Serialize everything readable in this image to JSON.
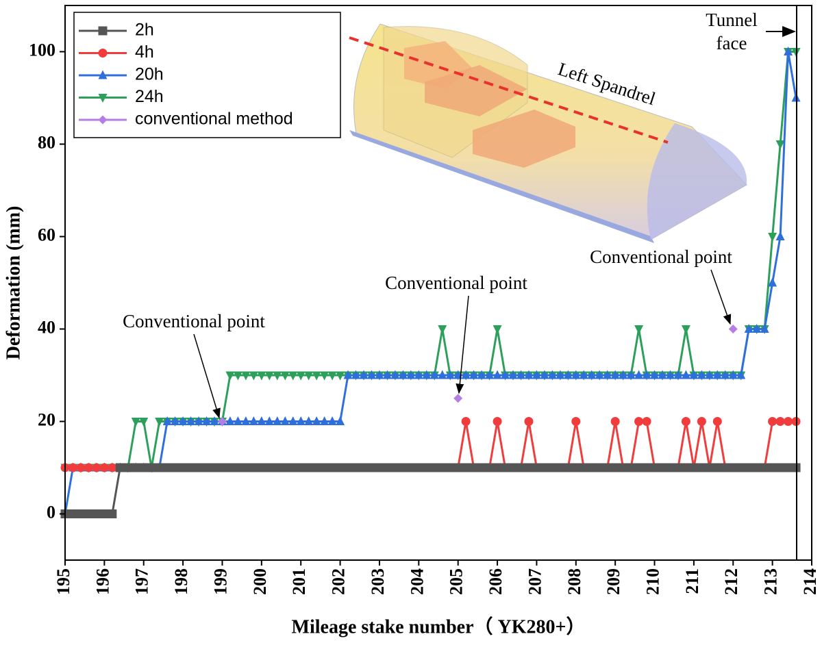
{
  "chart_data": {
    "type": "line",
    "xlabel": "Mileage stake number（ YK280+）",
    "ylabel": "Deformation (mm)",
    "x": [
      195,
      195.2,
      195.4,
      195.6,
      195.8,
      196,
      196.2,
      196.4,
      196.6,
      196.8,
      197,
      197.2,
      197.4,
      197.6,
      197.8,
      198,
      198.2,
      198.4,
      198.6,
      198.8,
      199,
      199.2,
      199.4,
      199.6,
      199.8,
      200,
      200.2,
      200.4,
      200.6,
      200.8,
      201,
      201.2,
      201.4,
      201.6,
      201.8,
      202,
      202.2,
      202.4,
      202.6,
      202.8,
      203,
      203.2,
      203.4,
      203.6,
      203.8,
      204,
      204.2,
      204.4,
      204.6,
      204.8,
      205,
      205.2,
      205.4,
      205.6,
      205.8,
      206,
      206.2,
      206.4,
      206.6,
      206.8,
      207,
      207.2,
      207.4,
      207.6,
      207.8,
      208,
      208.2,
      208.4,
      208.6,
      208.8,
      209,
      209.2,
      209.4,
      209.6,
      209.8,
      210,
      210.2,
      210.4,
      210.6,
      210.8,
      211,
      211.2,
      211.4,
      211.6,
      211.8,
      212,
      212.2,
      212.4,
      212.6,
      212.8,
      213,
      213.2,
      213.4,
      213.6
    ],
    "series": [
      {
        "name": "2h",
        "color": "#555555",
        "marker": "square",
        "values": [
          0,
          0,
          0,
          0,
          0,
          0,
          0,
          10,
          10,
          10,
          10,
          10,
          10,
          10,
          10,
          10,
          10,
          10,
          10,
          10,
          10,
          10,
          10,
          10,
          10,
          10,
          10,
          10,
          10,
          10,
          10,
          10,
          10,
          10,
          10,
          10,
          10,
          10,
          10,
          10,
          10,
          10,
          10,
          10,
          10,
          10,
          10,
          10,
          10,
          10,
          10,
          10,
          10,
          10,
          10,
          10,
          10,
          10,
          10,
          10,
          10,
          10,
          10,
          10,
          10,
          10,
          10,
          10,
          10,
          10,
          10,
          10,
          10,
          10,
          10,
          10,
          10,
          10,
          10,
          10,
          10,
          10,
          10,
          10,
          10,
          10,
          10,
          10,
          10,
          10,
          10,
          10,
          10,
          10
        ]
      },
      {
        "name": "4h",
        "color": "#f03c3c",
        "marker": "circle",
        "values": [
          10,
          10,
          10,
          10,
          10,
          10,
          10,
          10,
          10,
          10,
          10,
          10,
          10,
          10,
          10,
          10,
          10,
          10,
          10,
          10,
          10,
          10,
          10,
          10,
          10,
          10,
          10,
          10,
          10,
          10,
          10,
          10,
          10,
          10,
          10,
          10,
          10,
          10,
          10,
          10,
          10,
          10,
          10,
          10,
          10,
          10,
          10,
          10,
          10,
          10,
          10,
          20,
          10,
          10,
          10,
          20,
          10,
          10,
          10,
          20,
          10,
          10,
          10,
          10,
          10,
          20,
          10,
          10,
          10,
          10,
          20,
          10,
          10,
          20,
          20,
          10,
          10,
          10,
          10,
          20,
          10,
          20,
          10,
          20,
          10,
          10,
          10,
          10,
          10,
          10,
          20,
          20,
          20,
          20
        ]
      },
      {
        "name": "20h",
        "color": "#2f6fdc",
        "marker": "triangle-up",
        "values": [
          0,
          10,
          10,
          10,
          10,
          10,
          10,
          10,
          10,
          10,
          10,
          10,
          10,
          20,
          20,
          20,
          20,
          20,
          20,
          20,
          20,
          20,
          20,
          20,
          20,
          20,
          20,
          20,
          20,
          20,
          20,
          20,
          20,
          20,
          20,
          20,
          30,
          30,
          30,
          30,
          30,
          30,
          30,
          30,
          30,
          30,
          30,
          30,
          30,
          30,
          30,
          30,
          30,
          30,
          30,
          30,
          30,
          30,
          30,
          30,
          30,
          30,
          30,
          30,
          30,
          30,
          30,
          30,
          30,
          30,
          30,
          30,
          30,
          30,
          30,
          30,
          30,
          30,
          30,
          30,
          30,
          30,
          30,
          30,
          30,
          30,
          30,
          40,
          40,
          40,
          50,
          60,
          100,
          90
        ]
      },
      {
        "name": "24h",
        "color": "#2ca05a",
        "marker": "triangle-down",
        "values": [
          10,
          10,
          10,
          10,
          10,
          10,
          10,
          10,
          10,
          20,
          20,
          10,
          20,
          20,
          20,
          20,
          20,
          20,
          20,
          20,
          20,
          30,
          30,
          30,
          30,
          30,
          30,
          30,
          30,
          30,
          30,
          30,
          30,
          30,
          30,
          30,
          30,
          30,
          30,
          30,
          30,
          30,
          30,
          30,
          30,
          30,
          30,
          30,
          40,
          30,
          30,
          30,
          30,
          30,
          30,
          40,
          30,
          30,
          30,
          30,
          30,
          30,
          30,
          30,
          30,
          30,
          30,
          30,
          30,
          30,
          30,
          30,
          30,
          40,
          30,
          30,
          30,
          30,
          30,
          40,
          30,
          30,
          30,
          30,
          30,
          30,
          30,
          40,
          40,
          40,
          60,
          80,
          100,
          100
        ]
      },
      {
        "name": "conventional method",
        "color": "#b57ee6",
        "marker": "diamond",
        "values": [
          null,
          null,
          null,
          null,
          null,
          null,
          null,
          null,
          null,
          null,
          null,
          null,
          null,
          null,
          null,
          null,
          null,
          null,
          null,
          null,
          20,
          null,
          null,
          null,
          null,
          null,
          null,
          null,
          null,
          null,
          null,
          null,
          null,
          null,
          null,
          null,
          null,
          null,
          null,
          null,
          null,
          null,
          null,
          null,
          null,
          null,
          null,
          null,
          null,
          null,
          25,
          null,
          null,
          null,
          null,
          null,
          null,
          null,
          null,
          null,
          null,
          null,
          null,
          null,
          null,
          null,
          null,
          null,
          null,
          null,
          null,
          null,
          null,
          null,
          null,
          null,
          null,
          null,
          null,
          null,
          null,
          null,
          null,
          null,
          null,
          40,
          null,
          null,
          null,
          null,
          null,
          null,
          null,
          null
        ]
      }
    ],
    "xlim": [
      195,
      214
    ],
    "xticks": [
      195,
      196,
      197,
      198,
      199,
      200,
      201,
      202,
      203,
      204,
      205,
      206,
      207,
      208,
      209,
      210,
      211,
      212,
      213,
      214
    ],
    "ylim": [
      -10,
      110
    ],
    "yticks": [
      0,
      20,
      40,
      60,
      80,
      100
    ],
    "legend": "upper left",
    "annotations": [
      "Conventional point",
      "Conventional point",
      "Conventional point"
    ],
    "tunnel_face": [
      "Tunnel",
      "face"
    ],
    "inset_label": "Left Spandrel"
  }
}
